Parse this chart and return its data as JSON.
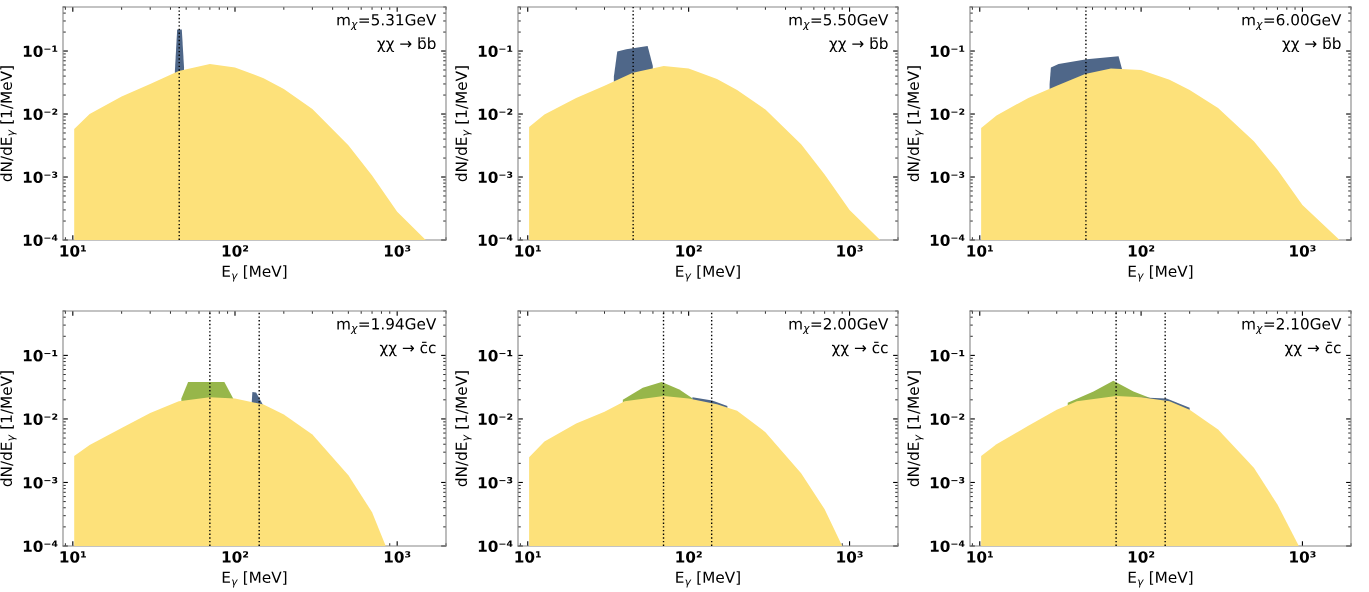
{
  "chart_data": [
    {
      "type": "area",
      "xlabel": "E$_{γ}$ [MeV]",
      "ylabel": "dN/dE$_{γ}$ [1/MeV]",
      "log": "xy",
      "grid": false,
      "xlim": [
        8.7,
        2000
      ],
      "ylim": [
        0.0001,
        0.5
      ],
      "xticks": [
        {
          "value": 10,
          "label": "10¹"
        },
        {
          "value": 100,
          "label": "10²"
        },
        {
          "value": 1000,
          "label": "10³"
        }
      ],
      "yticks": [
        {
          "value": 0.0001,
          "label": "10⁻⁴"
        },
        {
          "value": 0.001,
          "label": "10⁻³"
        },
        {
          "value": 0.01,
          "label": "10⁻²"
        },
        {
          "value": 0.1,
          "label": "10⁻¹"
        }
      ],
      "annotations": [
        "m$_{χ}$=5.31GeV",
        "χχ → b̄b"
      ],
      "ref_lines": [
        {
          "axis": "x",
          "value": 45.3,
          "color": "#000000",
          "line_style": "dotted"
        }
      ],
      "series": [
        {
          "color": "#4f6789",
          "x": [
            42.6,
            44,
            47,
            48.5
          ],
          "values": [
            0.048,
            0.22,
            0.22,
            0.055
          ]
        },
        {
          "color": "#fde17a",
          "x": [
            10.2,
            12.7,
            20,
            30,
            45,
            70,
            100,
            150,
            200,
            300,
            500,
            700,
            1000,
            1500
          ],
          "values": [
            0.0058,
            0.01,
            0.019,
            0.03,
            0.048,
            0.062,
            0.055,
            0.037,
            0.025,
            0.012,
            0.0032,
            0.00106,
            0.00028,
            0.0001
          ]
        }
      ]
    },
    {
      "type": "area",
      "xlabel": "E$_{γ}$ [MeV]",
      "ylabel": "dN/dE$_{γ}$ [1/MeV]",
      "log": "xy",
      "grid": false,
      "xlim": [
        8.7,
        2000
      ],
      "ylim": [
        0.0001,
        0.5
      ],
      "xticks": [
        {
          "value": 10,
          "label": "10¹"
        },
        {
          "value": 100,
          "label": "10²"
        },
        {
          "value": 1000,
          "label": "10³"
        }
      ],
      "yticks": [
        {
          "value": 0.0001,
          "label": "10⁻⁴"
        },
        {
          "value": 0.001,
          "label": "10⁻³"
        },
        {
          "value": 0.01,
          "label": "10⁻²"
        },
        {
          "value": 0.1,
          "label": "10⁻¹"
        }
      ],
      "annotations": [
        "m$_{χ}$=5.50GeV",
        "χχ → b̄b"
      ],
      "ref_lines": [
        {
          "axis": "x",
          "value": 45.2,
          "color": "#000000",
          "line_style": "dotted"
        }
      ],
      "series": [
        {
          "color": "#4f6789",
          "x": [
            34.3,
            36,
            41,
            55.6,
            59.9
          ],
          "values": [
            0.039,
            0.098,
            0.107,
            0.12,
            0.058
          ]
        },
        {
          "color": "#fde17a",
          "x": [
            10.2,
            12.7,
            20,
            30,
            45,
            70,
            100,
            150,
            200,
            300,
            500,
            700,
            1000,
            1550
          ],
          "values": [
            0.0062,
            0.0098,
            0.018,
            0.028,
            0.045,
            0.058,
            0.053,
            0.036,
            0.024,
            0.0118,
            0.0033,
            0.0011,
            0.0003,
            0.0001
          ]
        }
      ]
    },
    {
      "type": "area",
      "xlabel": "E$_{γ}$ [MeV]",
      "ylabel": "dN/dE$_{γ}$ [1/MeV]",
      "log": "xy",
      "grid": false,
      "xlim": [
        8.7,
        2000
      ],
      "ylim": [
        0.0001,
        0.5
      ],
      "xticks": [
        {
          "value": 10,
          "label": "10¹"
        },
        {
          "value": 100,
          "label": "10²"
        },
        {
          "value": 1000,
          "label": "10³"
        }
      ],
      "yticks": [
        {
          "value": 0.0001,
          "label": "10⁻⁴"
        },
        {
          "value": 0.001,
          "label": "10⁻³"
        },
        {
          "value": 0.01,
          "label": "10⁻²"
        },
        {
          "value": 0.1,
          "label": "10⁻¹"
        }
      ],
      "annotations": [
        "m$_{χ}$=6.00GeV",
        "χχ → b̄b"
      ],
      "ref_lines": [
        {
          "axis": "x",
          "value": 45.5,
          "color": "#000000",
          "line_style": "dotted"
        }
      ],
      "series": [
        {
          "color": "#4f6789",
          "x": [
            27.1,
            27.6,
            30.8,
            46,
            72.5,
            76
          ],
          "values": [
            0.03,
            0.055,
            0.062,
            0.074,
            0.083,
            0.053
          ]
        },
        {
          "color": "#fde17a",
          "x": [
            10.2,
            12.7,
            20,
            30,
            45,
            65,
            100,
            150,
            200,
            300,
            500,
            700,
            1000,
            1700
          ],
          "values": [
            0.006,
            0.0095,
            0.018,
            0.028,
            0.043,
            0.053,
            0.05,
            0.035,
            0.024,
            0.0125,
            0.0037,
            0.0013,
            0.00036,
            0.0001
          ]
        }
      ]
    },
    {
      "type": "area",
      "xlabel": "E$_{γ}$ [MeV]",
      "ylabel": "dN/dE$_{γ}$ [1/MeV]",
      "log": "xy",
      "grid": false,
      "xlim": [
        8.7,
        2000
      ],
      "ylim": [
        0.0001,
        0.5
      ],
      "xticks": [
        {
          "value": 10,
          "label": "10¹"
        },
        {
          "value": 100,
          "label": "10²"
        },
        {
          "value": 1000,
          "label": "10³"
        }
      ],
      "yticks": [
        {
          "value": 0.0001,
          "label": "10⁻⁴"
        },
        {
          "value": 0.001,
          "label": "10⁻³"
        },
        {
          "value": 0.01,
          "label": "10⁻²"
        },
        {
          "value": 0.1,
          "label": "10⁻¹"
        }
      ],
      "annotations": [
        "m$_{χ}$=1.94GeV",
        "χχ → c̄c"
      ],
      "ref_lines": [
        {
          "axis": "x",
          "value": 70,
          "color": "#000000",
          "line_style": "dotted"
        },
        {
          "axis": "x",
          "value": 141,
          "color": "#000000",
          "line_style": "dotted"
        }
      ],
      "series": [
        {
          "color": "#97b64a",
          "x": [
            46.7,
            51.4,
            86,
            97.5
          ],
          "values": [
            0.021,
            0.038,
            0.038,
            0.021
          ]
        },
        {
          "color": "#4f6789",
          "x": [
            127,
            128,
            135,
            148
          ],
          "values": [
            0.019,
            0.0266,
            0.026,
            0.017
          ]
        },
        {
          "color": "#fde17a",
          "x": [
            10.2,
            12.7,
            20,
            30,
            45,
            70,
            100,
            150,
            200,
            300,
            500,
            700,
            850
          ],
          "values": [
            0.0026,
            0.0039,
            0.0072,
            0.0124,
            0.019,
            0.022,
            0.021,
            0.0168,
            0.0117,
            0.0057,
            0.0013,
            0.00034,
            0.0001
          ]
        }
      ]
    },
    {
      "type": "area",
      "xlabel": "E$_{γ}$ [MeV]",
      "ylabel": "dN/dE$_{γ}$ [1/MeV]",
      "log": "xy",
      "grid": false,
      "xlim": [
        8.7,
        2000
      ],
      "ylim": [
        0.0001,
        0.5
      ],
      "xticks": [
        {
          "value": 10,
          "label": "10¹"
        },
        {
          "value": 100,
          "label": "10²"
        },
        {
          "value": 1000,
          "label": "10³"
        }
      ],
      "yticks": [
        {
          "value": 0.0001,
          "label": "10⁻⁴"
        },
        {
          "value": 0.001,
          "label": "10⁻³"
        },
        {
          "value": 0.01,
          "label": "10⁻²"
        },
        {
          "value": 0.1,
          "label": "10⁻¹"
        }
      ],
      "annotations": [
        "m$_{χ}$=2.00GeV",
        "χχ → c̄c"
      ],
      "ref_lines": [
        {
          "axis": "x",
          "value": 69.8,
          "color": "#000000",
          "line_style": "dotted"
        },
        {
          "axis": "x",
          "value": 139,
          "color": "#000000",
          "line_style": "dotted"
        }
      ],
      "series": [
        {
          "color": "#97b64a",
          "x": [
            39,
            51.9,
            68,
            87.5,
            106
          ],
          "values": [
            0.02,
            0.031,
            0.038,
            0.029,
            0.021
          ]
        },
        {
          "color": "#4f6789",
          "x": [
            105.6,
            140,
            174
          ],
          "values": [
            0.022,
            0.0195,
            0.016
          ]
        },
        {
          "color": "#fde17a",
          "x": [
            10.2,
            12.7,
            20,
            30,
            40,
            70,
            100,
            150,
            200,
            300,
            500,
            700,
            900
          ],
          "values": [
            0.0025,
            0.0044,
            0.0085,
            0.013,
            0.019,
            0.023,
            0.021,
            0.017,
            0.0135,
            0.0062,
            0.0014,
            0.00038,
            0.0001
          ]
        }
      ]
    },
    {
      "type": "area",
      "xlabel": "E$_{γ}$ [MeV]",
      "ylabel": "dN/dE$_{γ}$ [1/MeV]",
      "log": "xy",
      "grid": false,
      "xlim": [
        8.7,
        2000
      ],
      "ylim": [
        0.0001,
        0.5
      ],
      "xticks": [
        {
          "value": 10,
          "label": "10¹"
        },
        {
          "value": 100,
          "label": "10²"
        },
        {
          "value": 1000,
          "label": "10³"
        }
      ],
      "yticks": [
        {
          "value": 0.0001,
          "label": "10⁻⁴"
        },
        {
          "value": 0.001,
          "label": "10⁻³"
        },
        {
          "value": 0.01,
          "label": "10⁻²"
        },
        {
          "value": 0.1,
          "label": "10⁻¹"
        }
      ],
      "annotations": [
        "m$_{χ}$=2.10GeV",
        "χχ → c̄c"
      ],
      "ref_lines": [
        {
          "axis": "x",
          "value": 70,
          "color": "#000000",
          "line_style": "dotted"
        },
        {
          "axis": "x",
          "value": 141,
          "color": "#000000",
          "line_style": "dotted"
        }
      ],
      "series": [
        {
          "color": "#97b64a",
          "x": [
            35.1,
            50.7,
            67.3,
            89.7,
            116
          ],
          "values": [
            0.018,
            0.027,
            0.04,
            0.027,
            0.021
          ]
        },
        {
          "color": "#4f6789",
          "x": [
            94,
            144,
            200
          ],
          "values": [
            0.022,
            0.021,
            0.015
          ]
        },
        {
          "color": "#fde17a",
          "x": [
            10.2,
            12.7,
            20,
            30,
            40,
            70,
            100,
            150,
            200,
            300,
            500,
            700,
            950
          ],
          "values": [
            0.0026,
            0.004,
            0.0078,
            0.014,
            0.019,
            0.023,
            0.022,
            0.019,
            0.014,
            0.0068,
            0.0017,
            0.00045,
            0.0001
          ]
        }
      ]
    }
  ]
}
